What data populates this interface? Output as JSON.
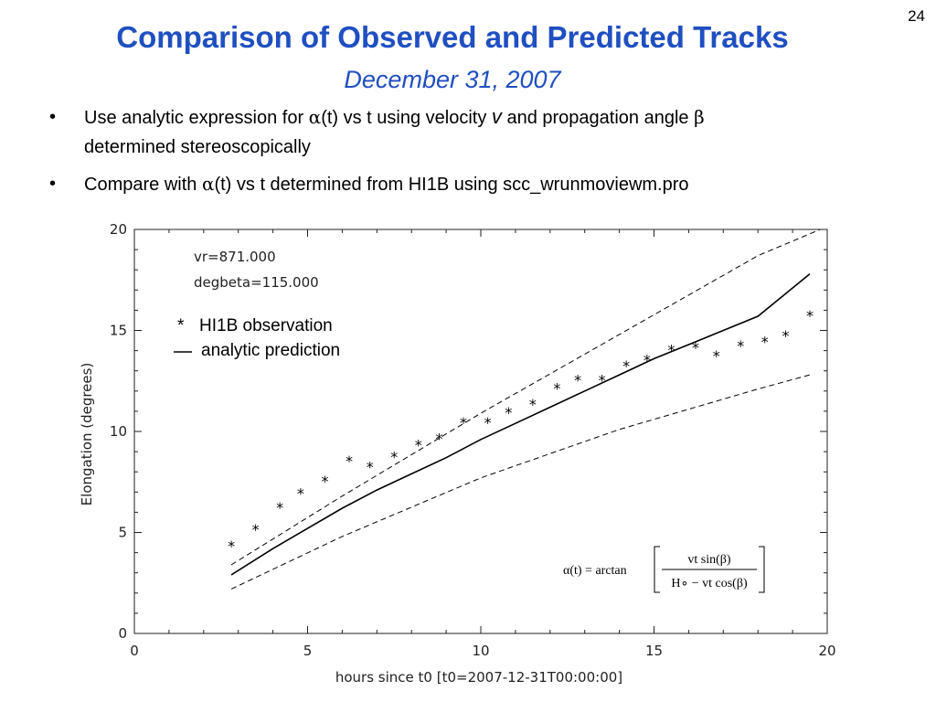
{
  "slide": {
    "page_number": "24",
    "title": "Comparison of Observed and Predicted Tracks",
    "subtitle": "December 31, 2007"
  },
  "bullets": [
    {
      "prefix": "Use analytic expression for ",
      "alpha": "α",
      "mid": "(t) vs t using velocity ",
      "var_v": "v",
      "mid2": " and propagation angle ",
      "beta": "β",
      "line2": "determined stereoscopically"
    },
    {
      "prefix": "Compare with ",
      "alpha": "α",
      "rest": "(t) vs t determined from HI1B using scc_wrunmoviewm.pro"
    }
  ],
  "chart_data": {
    "type": "scatter",
    "xlabel": "hours since t0  [t0=2007-12-31T00:00:00]",
    "ylabel": "Elongation (degrees)",
    "xlim": [
      0,
      20
    ],
    "ylim": [
      0,
      20
    ],
    "xticks": [
      0,
      5,
      10,
      15,
      20
    ],
    "yticks": [
      0,
      5,
      10,
      15,
      20
    ],
    "parameters": [
      "vr=871.000",
      "degbeta=115.000"
    ],
    "legend": [
      {
        "marker": "*",
        "label": "HI1B observation"
      },
      {
        "marker": "—",
        "label": "analytic prediction"
      }
    ],
    "series": [
      {
        "name": "HI1B observation",
        "style": "asterisk",
        "x": [
          2.8,
          3.5,
          4.2,
          4.8,
          5.5,
          6.2,
          6.8,
          7.5,
          8.2,
          8.8,
          9.5,
          10.2,
          10.8,
          11.5,
          12.2,
          12.8,
          13.5,
          14.2,
          14.8,
          15.5,
          16.2,
          16.8,
          17.5,
          18.2,
          18.8,
          19.5
        ],
        "y": [
          4.4,
          5.2,
          6.3,
          7.0,
          7.6,
          8.6,
          8.3,
          8.8,
          9.4,
          9.7,
          10.5,
          10.5,
          11.0,
          11.4,
          12.2,
          12.6,
          12.6,
          13.3,
          13.6,
          14.1,
          14.2,
          13.8,
          14.3,
          14.5,
          14.8,
          15.8
        ]
      },
      {
        "name": "analytic prediction",
        "style": "solid",
        "x": [
          2.8,
          4.0,
          5.0,
          6.0,
          7.0,
          8.0,
          9.0,
          10.0,
          11.0,
          12.0,
          13.0,
          14.0,
          15.0,
          16.0,
          17.0,
          18.0,
          19.5
        ],
        "y": [
          2.9,
          4.2,
          5.2,
          6.2,
          7.1,
          7.9,
          8.7,
          9.6,
          10.4,
          11.2,
          12.0,
          12.8,
          13.6,
          14.3,
          15.0,
          15.7,
          17.8
        ]
      },
      {
        "style": "dashed",
        "x": [
          2.8,
          6.0,
          10.0,
          14.0,
          18.0,
          19.8
        ],
        "y": [
          3.4,
          6.8,
          10.9,
          14.8,
          18.7,
          20.0
        ]
      },
      {
        "style": "dashed",
        "x": [
          2.8,
          6.0,
          10.0,
          14.0,
          18.0,
          19.5
        ],
        "y": [
          2.2,
          4.8,
          7.7,
          10.1,
          12.1,
          12.8
        ]
      }
    ],
    "formula": {
      "lhs": "α(t) = arctan",
      "numerator": "vt sin(β)",
      "denominator": "H∘ − vt cos(β)"
    }
  }
}
